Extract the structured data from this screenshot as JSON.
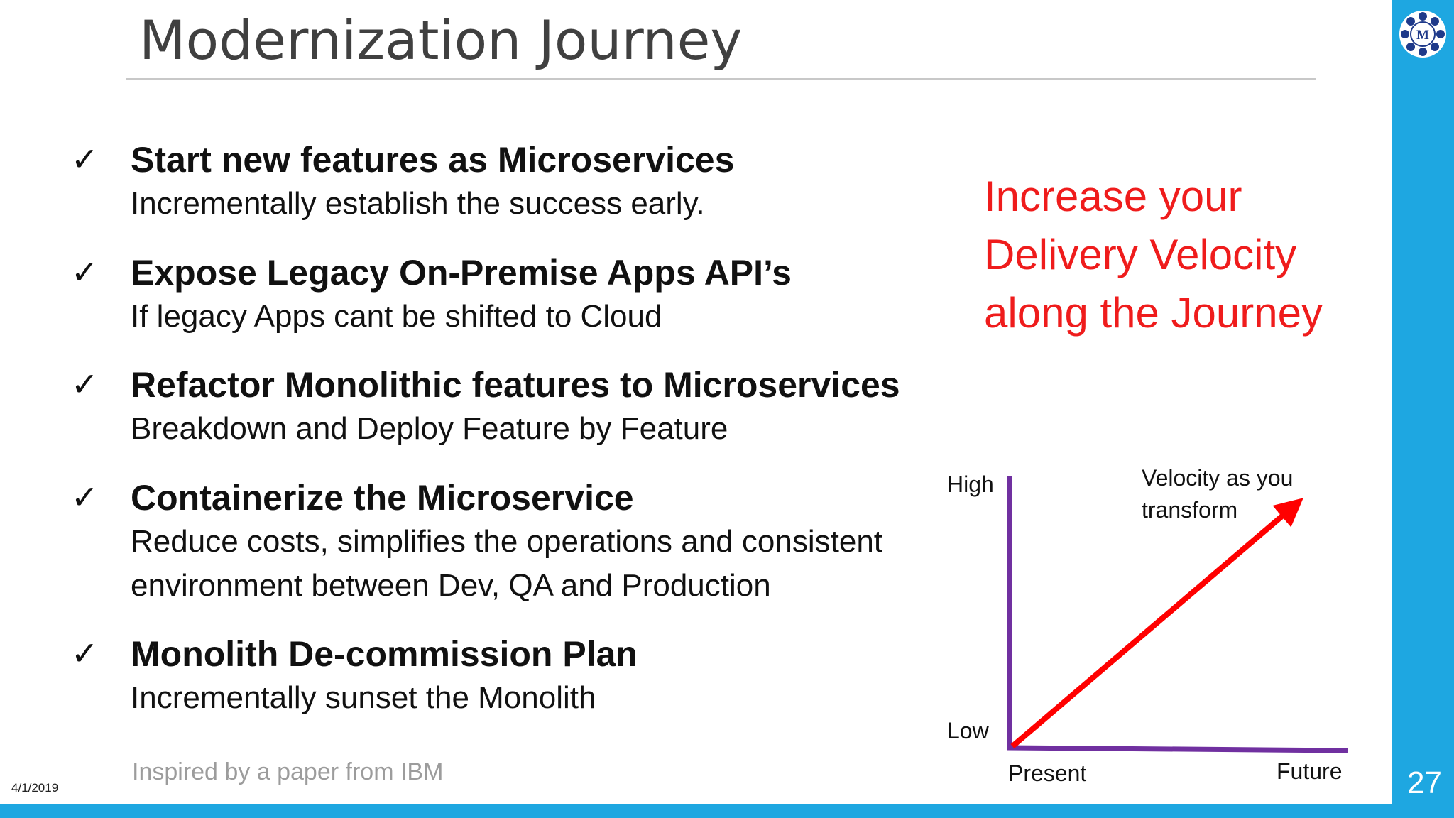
{
  "slide": {
    "title": "Modernization Journey",
    "bullets": [
      {
        "heading": "Start new features as Microservices",
        "lines": [
          "Incrementally establish the success early."
        ]
      },
      {
        "heading": "Expose Legacy On-Premise Apps API’s",
        "lines": [
          "If legacy Apps cant be shifted to Cloud"
        ]
      },
      {
        "heading": "Refactor Monolithic features to Microservices",
        "lines": [
          "Breakdown and Deploy Feature by Feature"
        ]
      },
      {
        "heading": "Containerize the Microservice",
        "lines": [
          "Reduce costs, simplifies the operations and consistent",
          "environment between Dev, QA and Production"
        ]
      },
      {
        "heading": "Monolith De-commission Plan",
        "lines": [
          "Incrementally sunset the Monolith"
        ]
      }
    ],
    "callout": [
      "Increase your",
      "Delivery Velocity",
      "along the Journey"
    ],
    "footnote": "Inspired by a paper from IBM",
    "date": "4/1/2019",
    "page_number": "27",
    "logo_letter": "M",
    "colors": {
      "accent_band": "#1ea7e1",
      "callout": "#ef1c1c",
      "axis": "#7030a0",
      "arrow": "#ff0000"
    }
  },
  "chart_data": {
    "type": "line",
    "ylabel_high": "High",
    "ylabel_low": "Low",
    "xlabel_start": "Present",
    "xlabel_end": "Future",
    "annotation": [
      "Velocity as you",
      "transform"
    ],
    "series": [
      {
        "x": [
          0,
          1
        ],
        "y": [
          0,
          1
        ]
      }
    ],
    "xlim": [
      0,
      1
    ],
    "ylim": [
      0,
      1.15
    ]
  }
}
